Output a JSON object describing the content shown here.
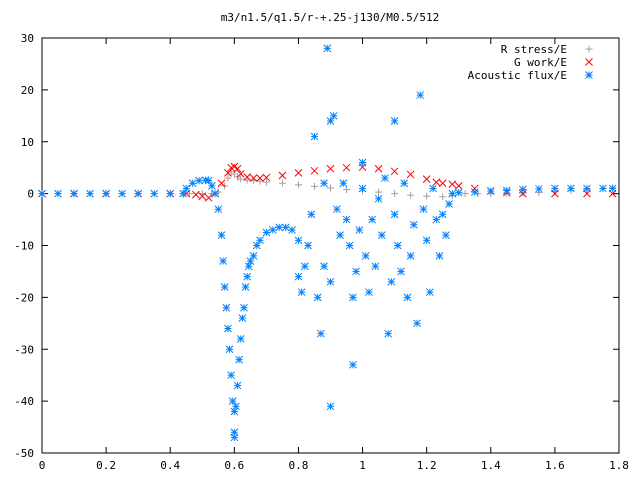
{
  "chart_data": {
    "type": "scatter",
    "title": "m3/n1.5/q1.5/r-+.25-j130/M0.5/512",
    "xlabel": "",
    "ylabel": "",
    "xlim": [
      0,
      1.8
    ],
    "ylim": [
      -50,
      30
    ],
    "xticks": [
      0,
      0.2,
      0.4,
      0.6,
      0.8,
      1,
      1.2,
      1.4,
      1.6,
      1.8
    ],
    "yticks": [
      -50,
      -40,
      -30,
      -20,
      -10,
      0,
      10,
      20,
      30
    ],
    "grid": false,
    "legend_position": "top-right",
    "series": [
      {
        "name": "R stress/E",
        "marker": "+",
        "color": "#a0a0a0",
        "points": [
          [
            0,
            0
          ],
          [
            0.1,
            0
          ],
          [
            0.2,
            0
          ],
          [
            0.3,
            0
          ],
          [
            0.4,
            0
          ],
          [
            0.46,
            0
          ],
          [
            0.5,
            0
          ],
          [
            0.53,
            0
          ],
          [
            0.55,
            0.3
          ],
          [
            0.57,
            1.5
          ],
          [
            0.58,
            3
          ],
          [
            0.59,
            4.2
          ],
          [
            0.6,
            3.8
          ],
          [
            0.61,
            3.2
          ],
          [
            0.62,
            2.8
          ],
          [
            0.64,
            2.6
          ],
          [
            0.66,
            2.5
          ],
          [
            0.68,
            2.4
          ],
          [
            0.7,
            2.2
          ],
          [
            0.75,
            2
          ],
          [
            0.8,
            1.7
          ],
          [
            0.85,
            1.4
          ],
          [
            0.9,
            1.1
          ],
          [
            0.95,
            0.8
          ],
          [
            1.0,
            0.5
          ],
          [
            1.05,
            0.3
          ],
          [
            1.1,
            0
          ],
          [
            1.15,
            -0.3
          ],
          [
            1.2,
            -0.5
          ],
          [
            1.25,
            -0.6
          ],
          [
            1.28,
            -0.4
          ],
          [
            1.32,
            0
          ],
          [
            1.36,
            0
          ],
          [
            1.4,
            0
          ],
          [
            1.45,
            0
          ],
          [
            1.5,
            0.1
          ],
          [
            1.55,
            0.2
          ],
          [
            1.6,
            0.4
          ],
          [
            1.65,
            0.6
          ],
          [
            1.7,
            0.8
          ],
          [
            1.75,
            1
          ],
          [
            1.78,
            1.1
          ]
        ]
      },
      {
        "name": "G work/E",
        "marker": "x",
        "color": "#ff0000",
        "points": [
          [
            0,
            0
          ],
          [
            0.1,
            0
          ],
          [
            0.2,
            0
          ],
          [
            0.3,
            0
          ],
          [
            0.4,
            0
          ],
          [
            0.45,
            0
          ],
          [
            0.48,
            -0.2
          ],
          [
            0.5,
            -0.5
          ],
          [
            0.52,
            -0.8
          ],
          [
            0.54,
            0
          ],
          [
            0.56,
            2
          ],
          [
            0.58,
            4
          ],
          [
            0.59,
            5
          ],
          [
            0.6,
            5.2
          ],
          [
            0.61,
            4.8
          ],
          [
            0.62,
            3.8
          ],
          [
            0.64,
            3.2
          ],
          [
            0.66,
            3
          ],
          [
            0.68,
            3
          ],
          [
            0.7,
            3.1
          ],
          [
            0.75,
            3.5
          ],
          [
            0.8,
            4
          ],
          [
            0.85,
            4.4
          ],
          [
            0.9,
            4.8
          ],
          [
            0.95,
            5
          ],
          [
            1.0,
            5.1
          ],
          [
            1.05,
            4.8
          ],
          [
            1.1,
            4.3
          ],
          [
            1.15,
            3.7
          ],
          [
            1.2,
            2.8
          ],
          [
            1.23,
            2.2
          ],
          [
            1.25,
            2
          ],
          [
            1.28,
            1.8
          ],
          [
            1.3,
            1.5
          ],
          [
            1.35,
            1
          ],
          [
            1.4,
            0.5
          ],
          [
            1.45,
            0.2
          ],
          [
            1.5,
            0
          ],
          [
            1.6,
            0
          ],
          [
            1.7,
            0
          ],
          [
            1.78,
            0
          ]
        ]
      },
      {
        "name": "Acoustic flux/E",
        "marker": "*",
        "color": "#0080ff",
        "points": [
          [
            0,
            0
          ],
          [
            0.05,
            0
          ],
          [
            0.1,
            0
          ],
          [
            0.15,
            0
          ],
          [
            0.2,
            0
          ],
          [
            0.25,
            0
          ],
          [
            0.3,
            0
          ],
          [
            0.35,
            0
          ],
          [
            0.4,
            0
          ],
          [
            0.44,
            0
          ],
          [
            0.45,
            1
          ],
          [
            0.47,
            2
          ],
          [
            0.49,
            2.5
          ],
          [
            0.51,
            2.6
          ],
          [
            0.52,
            2.5
          ],
          [
            0.53,
            1.5
          ],
          [
            0.54,
            0
          ],
          [
            0.55,
            -3
          ],
          [
            0.56,
            -8
          ],
          [
            0.565,
            -13
          ],
          [
            0.57,
            -18
          ],
          [
            0.575,
            -22
          ],
          [
            0.58,
            -26
          ],
          [
            0.585,
            -30
          ],
          [
            0.59,
            -35
          ],
          [
            0.595,
            -40
          ],
          [
            0.6,
            -42
          ],
          [
            0.6,
            -46
          ],
          [
            0.6,
            -47
          ],
          [
            0.605,
            -41
          ],
          [
            0.61,
            -37
          ],
          [
            0.615,
            -32
          ],
          [
            0.62,
            -28
          ],
          [
            0.625,
            -24
          ],
          [
            0.63,
            -22
          ],
          [
            0.635,
            -18
          ],
          [
            0.64,
            -16
          ],
          [
            0.645,
            -14
          ],
          [
            0.65,
            -13
          ],
          [
            0.66,
            -12
          ],
          [
            0.67,
            -10
          ],
          [
            0.68,
            -9
          ],
          [
            0.7,
            -7.5
          ],
          [
            0.72,
            -7
          ],
          [
            0.74,
            -6.5
          ],
          [
            0.76,
            -6.5
          ],
          [
            0.78,
            -7
          ],
          [
            0.8,
            -9
          ],
          [
            0.8,
            -16
          ],
          [
            0.81,
            -19
          ],
          [
            0.82,
            -14
          ],
          [
            0.83,
            -10
          ],
          [
            0.84,
            -4
          ],
          [
            0.85,
            11
          ],
          [
            0.86,
            -20
          ],
          [
            0.87,
            -27
          ],
          [
            0.88,
            -14
          ],
          [
            0.88,
            2
          ],
          [
            0.89,
            28
          ],
          [
            0.9,
            -41
          ],
          [
            0.9,
            -17
          ],
          [
            0.9,
            14
          ],
          [
            0.91,
            15
          ],
          [
            0.92,
            -3
          ],
          [
            0.93,
            -8
          ],
          [
            0.94,
            2
          ],
          [
            0.95,
            -5
          ],
          [
            0.96,
            -10
          ],
          [
            0.97,
            -33
          ],
          [
            0.97,
            -20
          ],
          [
            0.98,
            -15
          ],
          [
            0.99,
            -7
          ],
          [
            1.0,
            1
          ],
          [
            1.0,
            6
          ],
          [
            1.01,
            -12
          ],
          [
            1.02,
            -19
          ],
          [
            1.03,
            -5
          ],
          [
            1.04,
            -14
          ],
          [
            1.05,
            -1
          ],
          [
            1.06,
            -8
          ],
          [
            1.07,
            3
          ],
          [
            1.08,
            -27
          ],
          [
            1.09,
            -17
          ],
          [
            1.1,
            -4
          ],
          [
            1.1,
            14
          ],
          [
            1.11,
            -10
          ],
          [
            1.12,
            -15
          ],
          [
            1.13,
            2
          ],
          [
            1.14,
            -20
          ],
          [
            1.15,
            -12
          ],
          [
            1.16,
            -6
          ],
          [
            1.17,
            -25
          ],
          [
            1.18,
            19
          ],
          [
            1.19,
            -3
          ],
          [
            1.2,
            -9
          ],
          [
            1.21,
            -19
          ],
          [
            1.22,
            1
          ],
          [
            1.23,
            -5
          ],
          [
            1.24,
            -12
          ],
          [
            1.25,
            -4
          ],
          [
            1.26,
            -8
          ],
          [
            1.27,
            -2
          ],
          [
            1.28,
            0
          ],
          [
            1.3,
            0.2
          ],
          [
            1.35,
            0.3
          ],
          [
            1.4,
            0.5
          ],
          [
            1.45,
            0.6
          ],
          [
            1.5,
            0.8
          ],
          [
            1.55,
            0.9
          ],
          [
            1.6,
            1
          ],
          [
            1.65,
            1
          ],
          [
            1.7,
            1
          ],
          [
            1.75,
            1
          ],
          [
            1.78,
            1
          ]
        ]
      }
    ]
  }
}
